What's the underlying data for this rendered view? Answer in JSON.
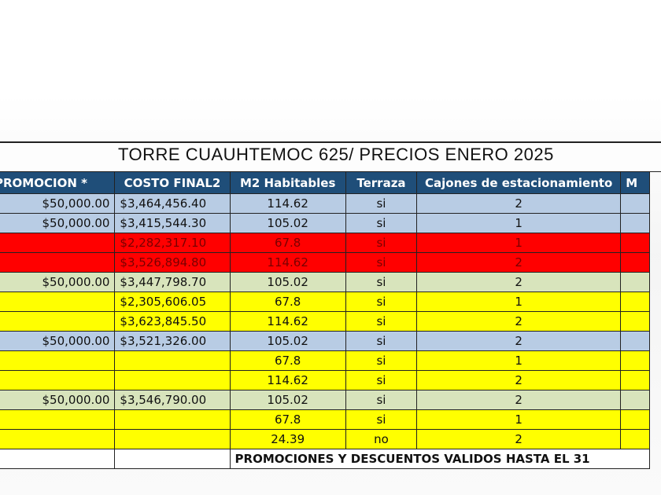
{
  "title": "TORRE CUAUHTEMOC 625/ PRECIOS ENERO 2025",
  "headers": {
    "promocion": "PROMOCION *",
    "costo_final": "COSTO FINAL2",
    "m2": "M2 Habitables",
    "terraza": "Terraza",
    "cajones": "Cajones de estacionamiento",
    "extra": "M"
  },
  "rows": [
    {
      "color": "blue",
      "promocion": "$50,000.00",
      "costo": "$3,464,456.40",
      "m2": "114.62",
      "terraza": "si",
      "cajones": "2"
    },
    {
      "color": "blue",
      "promocion": "$50,000.00",
      "costo": "$3,415,544.30",
      "m2": "105.02",
      "terraza": "si",
      "cajones": "1"
    },
    {
      "color": "red",
      "promocion": "",
      "costo": "$2,282,317.10",
      "m2": "67.8",
      "terraza": "si",
      "cajones": "1"
    },
    {
      "color": "red",
      "promocion": "",
      "costo": "$3,526,894.80",
      "m2": "114.62",
      "terraza": "si",
      "cajones": "2"
    },
    {
      "color": "green",
      "promocion": "$50,000.00",
      "costo": "$3,447,798.70",
      "m2": "105.02",
      "terraza": "si",
      "cajones": "2"
    },
    {
      "color": "yellow",
      "promocion": "",
      "costo": "$2,305,606.05",
      "m2": "67.8",
      "terraza": "si",
      "cajones": "1"
    },
    {
      "color": "yellow",
      "promocion": "",
      "costo": "$3,623,845.50",
      "m2": "114.62",
      "terraza": "si",
      "cajones": "2"
    },
    {
      "color": "blue",
      "promocion": "$50,000.00",
      "costo": "$3,521,326.00",
      "m2": "105.02",
      "terraza": "si",
      "cajones": "2"
    },
    {
      "color": "yellow",
      "promocion": "",
      "costo": "",
      "m2": "67.8",
      "terraza": "si",
      "cajones": "1"
    },
    {
      "color": "yellow",
      "promocion": "",
      "costo": "",
      "m2": "114.62",
      "terraza": "si",
      "cajones": "2"
    },
    {
      "color": "green",
      "promocion": "$50,000.00",
      "costo": "$3,546,790.00",
      "m2": "105.02",
      "terraza": "si",
      "cajones": "2"
    },
    {
      "color": "yellow",
      "promocion": "",
      "costo": "",
      "m2": "67.8",
      "terraza": "si",
      "cajones": "1"
    },
    {
      "color": "yellow",
      "promocion": "",
      "costo": "",
      "m2": "24.39",
      "terraza": "no",
      "cajones": "2"
    }
  ],
  "footnote": "PROMOCIONES Y DESCUENTOS VALIDOS HASTA EL 31",
  "colors": {
    "header": "#1f4e79",
    "blue": "#b8cce4",
    "red": "#ff0000",
    "green": "#d8e4bc",
    "yellow": "#ffff00"
  }
}
